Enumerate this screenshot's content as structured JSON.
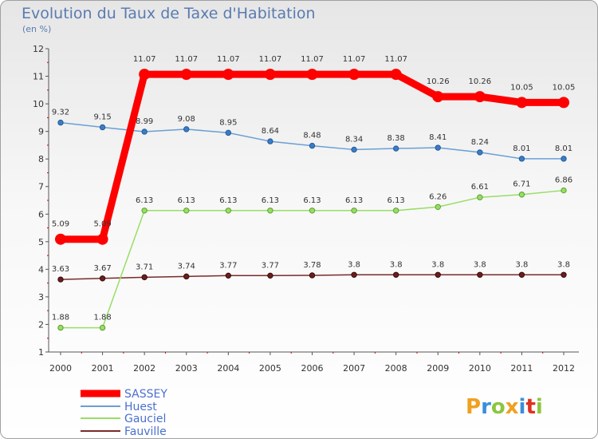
{
  "title": "Evolution du Taux de Taxe d'Habitation",
  "subtitle": "(en %)",
  "brand": {
    "text": "Proxiti",
    "letters": [
      "P",
      "r",
      "o",
      "x",
      "i",
      "t",
      "i"
    ],
    "colors": [
      "#f0a020",
      "#3a8fd8",
      "#8cc63f",
      "#f0a020",
      "#3a8fd8",
      "#e03020",
      "#8cc63f"
    ]
  },
  "chart_data": {
    "type": "line",
    "title": "Evolution du Taux de Taxe d'Habitation",
    "subtitle": "(en %)",
    "xlabel": "",
    "ylabel": "",
    "x": [
      "2000",
      "2001",
      "2002",
      "2003",
      "2004",
      "2005",
      "2006",
      "2007",
      "2008",
      "2009",
      "2010",
      "2011",
      "2012"
    ],
    "ylim": [
      1,
      12
    ],
    "yticks": [
      "1",
      "2",
      "3",
      "4",
      "5",
      "6",
      "7",
      "8",
      "9",
      "10",
      "11",
      "12"
    ],
    "grid": false,
    "legend_position": "bottom-left",
    "series": [
      {
        "name": "SASSEY",
        "color": "#ff0000",
        "values": [
          5.09,
          5.09,
          11.07,
          11.07,
          11.07,
          11.07,
          11.07,
          11.07,
          11.07,
          10.26,
          10.26,
          10.05,
          10.05
        ],
        "labels": [
          "5.09",
          "5.09",
          "11.07",
          "11.07",
          "11.07",
          "11.07",
          "11.07",
          "11.07",
          "11.07",
          "10.26",
          "10.26",
          "10.05",
          "10.05"
        ]
      },
      {
        "name": "Huest",
        "color": "#6a9fd4",
        "values": [
          9.32,
          9.15,
          8.99,
          9.08,
          8.95,
          8.64,
          8.48,
          8.34,
          8.38,
          8.41,
          8.24,
          8.01,
          8.01
        ],
        "labels": [
          "9.32",
          "9.15",
          "8.99",
          "9.08",
          "8.95",
          "8.64",
          "8.48",
          "8.34",
          "8.38",
          "8.41",
          "8.24",
          "8.01",
          "8.01"
        ]
      },
      {
        "name": "Gauciel",
        "color": "#99dd66",
        "values": [
          1.88,
          1.88,
          6.13,
          6.13,
          6.13,
          6.13,
          6.13,
          6.13,
          6.13,
          6.26,
          6.61,
          6.71,
          6.86
        ],
        "labels": [
          "1.88",
          "1.88",
          "6.13",
          "6.13",
          "6.13",
          "6.13",
          "6.13",
          "6.13",
          "6.13",
          "6.26",
          "6.61",
          "6.71",
          "6.86"
        ]
      },
      {
        "name": "Fauville",
        "color": "#7a2a2a",
        "values": [
          3.63,
          3.67,
          3.71,
          3.74,
          3.77,
          3.77,
          3.78,
          3.8,
          3.8,
          3.8,
          3.8,
          3.8,
          3.8
        ],
        "labels": [
          "3.63",
          "3.67",
          "3.71",
          "3.74",
          "3.77",
          "3.77",
          "3.78",
          "3.8",
          "3.8",
          "3.8",
          "3.8",
          "3.8",
          "3.8"
        ]
      }
    ]
  }
}
